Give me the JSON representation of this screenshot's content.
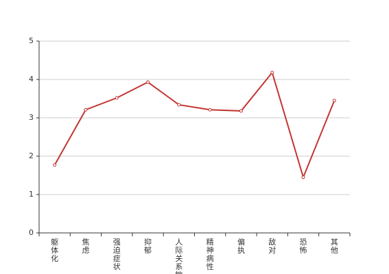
{
  "chart_data": {
    "type": "line",
    "categories": [
      "躯体化",
      "焦虑",
      "强迫症状",
      "抑郁",
      "人际关系敏感",
      "精神病性",
      "偏执",
      "敌对",
      "恐怖",
      "其他"
    ],
    "series": [
      {
        "color": "#c23531",
        "values": [
          1.77,
          3.21,
          3.52,
          3.93,
          3.34,
          3.21,
          3.18,
          4.18,
          1.45,
          3.45
        ]
      }
    ],
    "ylim": [
      0,
      5
    ],
    "yticks": [
      0,
      1,
      2,
      3,
      4,
      5
    ],
    "grid": true
  }
}
